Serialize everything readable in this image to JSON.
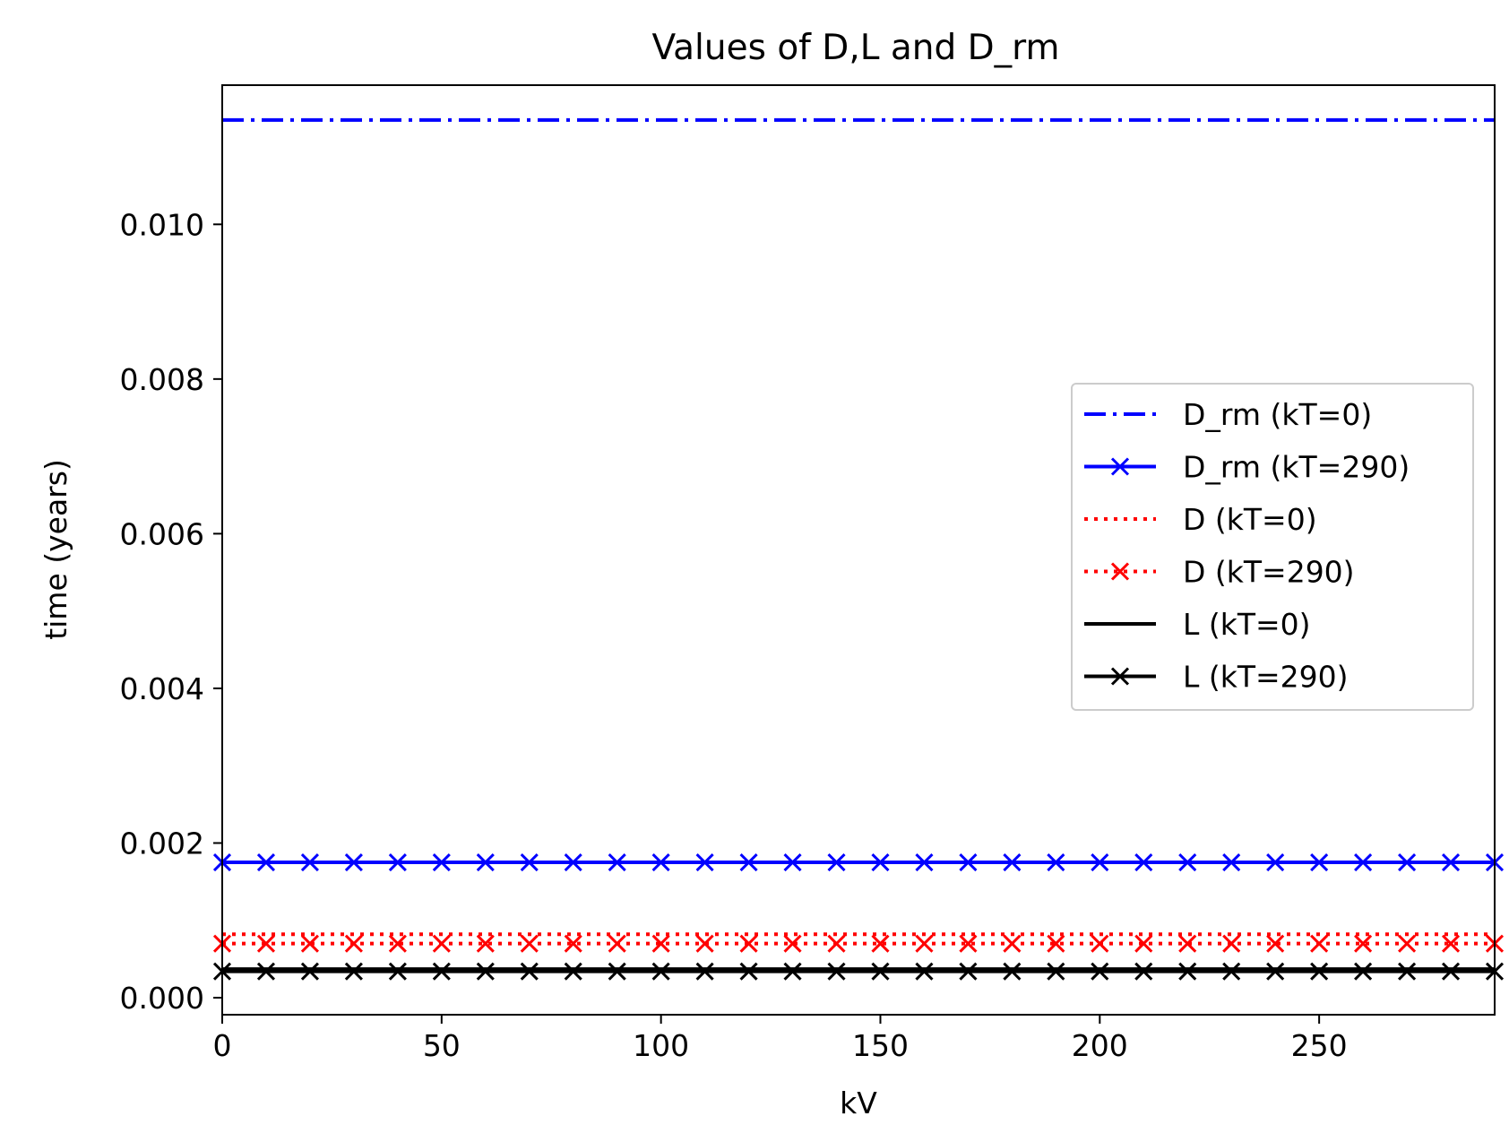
{
  "chart_data": {
    "type": "line",
    "title": "Values of D,L and D_rm",
    "xlabel": "kV",
    "ylabel": "time (years)",
    "xlim": [
      0,
      290
    ],
    "ylim": [
      -0.00022,
      0.0118
    ],
    "xticks": [
      0,
      50,
      100,
      150,
      200,
      250
    ],
    "xtick_labels": [
      "0",
      "50",
      "100",
      "150",
      "200",
      "250"
    ],
    "yticks": [
      0.0,
      0.002,
      0.004,
      0.006,
      0.008,
      0.01
    ],
    "ytick_labels": [
      "0.000",
      "0.002",
      "0.004",
      "0.006",
      "0.008",
      "0.010"
    ],
    "grid": false,
    "legend_position": "center-right",
    "marker_x": [
      0,
      10,
      20,
      30,
      40,
      50,
      60,
      70,
      80,
      90,
      100,
      110,
      120,
      130,
      140,
      150,
      160,
      170,
      180,
      190,
      200,
      210,
      220,
      230,
      240,
      250,
      260,
      270,
      280,
      290
    ],
    "series": [
      {
        "name": "D_rm (kT=0)",
        "label": "D_rm (kT=0)",
        "color": "#0000ff",
        "style": "dashdot",
        "marker": "none",
        "x": [
          0,
          290
        ],
        "values": [
          0.01135,
          0.01135
        ]
      },
      {
        "name": "D_rm (kT=290)",
        "label": "D_rm (kT=290)",
        "color": "#0000ff",
        "style": "solid",
        "marker": "x",
        "x": [
          0,
          290
        ],
        "values": [
          0.00175,
          0.00175
        ]
      },
      {
        "name": "D (kT=0)",
        "label": "D (kT=0)",
        "color": "#ff0000",
        "style": "dotted",
        "marker": "none",
        "x": [
          0,
          290
        ],
        "values": [
          0.00082,
          0.00082
        ]
      },
      {
        "name": "D (kT=290)",
        "label": "D (kT=290)",
        "color": "#ff0000",
        "style": "dotted",
        "marker": "x",
        "x": [
          0,
          290
        ],
        "values": [
          0.0007,
          0.0007
        ]
      },
      {
        "name": "L (kT=0)",
        "label": "L (kT=0)",
        "color": "#000000",
        "style": "solid",
        "marker": "none",
        "x": [
          0,
          290
        ],
        "values": [
          0.00037,
          0.00037
        ]
      },
      {
        "name": "L (kT=290)",
        "label": "L (kT=290)",
        "color": "#000000",
        "style": "solid",
        "marker": "x",
        "x": [
          0,
          290
        ],
        "values": [
          0.00034,
          0.00034
        ]
      }
    ]
  }
}
